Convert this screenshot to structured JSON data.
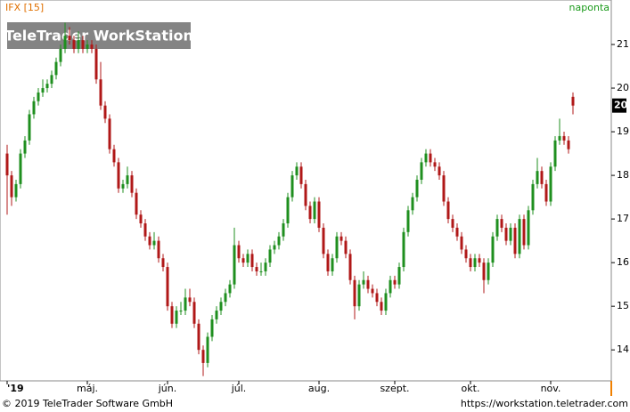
{
  "chart_data": {
    "type": "candlestick",
    "title": "IFX [15]",
    "interval": "naponta",
    "watermark": "TeleTrader WorkStation",
    "footer_left": "© 2019 TeleTrader Software GmbH",
    "footer_right": "https://workstation.teletrader.com",
    "up_color": "#1f8f1f",
    "down_color": "#b01818",
    "ylim": [
      13.29,
      22.02
    ],
    "yticks": [
      14,
      15,
      16,
      17,
      18,
      19,
      20,
      21
    ],
    "last_price": {
      "value": 19.6,
      "label": "20"
    },
    "categories": [
      "'19",
      null,
      null,
      null,
      null,
      null,
      null,
      null,
      null,
      null,
      null,
      null,
      null,
      null,
      null,
      null,
      null,
      null,
      "máj.",
      null,
      null,
      null,
      null,
      null,
      null,
      null,
      null,
      null,
      null,
      null,
      null,
      null,
      null,
      null,
      null,
      null,
      "jún.",
      null,
      null,
      null,
      null,
      null,
      null,
      null,
      null,
      null,
      null,
      null,
      null,
      null,
      null,
      null,
      "júl.",
      null,
      null,
      null,
      null,
      null,
      null,
      null,
      null,
      null,
      null,
      null,
      null,
      null,
      null,
      null,
      null,
      null,
      "aug.",
      null,
      null,
      null,
      null,
      null,
      null,
      null,
      null,
      null,
      null,
      null,
      null,
      null,
      null,
      null,
      null,
      "szept.",
      null,
      null,
      null,
      null,
      null,
      null,
      null,
      null,
      null,
      null,
      null,
      null,
      null,
      null,
      null,
      null,
      "okt.",
      null,
      null,
      null,
      null,
      null,
      null,
      null,
      null,
      null,
      null,
      null,
      null,
      null,
      null,
      null,
      null,
      null,
      "nov.",
      null,
      null,
      null,
      null,
      null
    ],
    "ohlc": [
      [
        18.5,
        18.7,
        17.1,
        18.0
      ],
      [
        18.0,
        18.1,
        17.3,
        17.5
      ],
      [
        17.5,
        17.9,
        17.4,
        17.8
      ],
      [
        17.8,
        18.6,
        17.7,
        18.5
      ],
      [
        18.5,
        18.9,
        18.4,
        18.8
      ],
      [
        18.8,
        19.5,
        18.7,
        19.4
      ],
      [
        19.4,
        19.8,
        19.3,
        19.7
      ],
      [
        19.7,
        20.0,
        19.6,
        19.9
      ],
      [
        19.9,
        20.2,
        19.8,
        20.0
      ],
      [
        20.0,
        20.2,
        19.9,
        20.1
      ],
      [
        20.1,
        20.4,
        20.0,
        20.3
      ],
      [
        20.3,
        20.7,
        20.2,
        20.6
      ],
      [
        20.6,
        21.0,
        20.5,
        20.9
      ],
      [
        20.9,
        21.5,
        20.8,
        21.2
      ],
      [
        21.2,
        21.4,
        21.0,
        21.1
      ],
      [
        21.1,
        21.2,
        20.8,
        20.9
      ],
      [
        20.9,
        21.3,
        20.8,
        21.1
      ],
      [
        21.1,
        21.2,
        20.8,
        20.9
      ],
      [
        20.9,
        21.1,
        20.8,
        21.0
      ],
      [
        21.0,
        21.1,
        20.8,
        20.9
      ],
      [
        20.9,
        21.0,
        20.1,
        20.2
      ],
      [
        20.2,
        20.6,
        19.5,
        19.6
      ],
      [
        19.6,
        19.7,
        19.2,
        19.3
      ],
      [
        19.3,
        19.4,
        18.5,
        18.6
      ],
      [
        18.6,
        18.7,
        18.2,
        18.3
      ],
      [
        18.3,
        18.4,
        17.6,
        17.7
      ],
      [
        17.7,
        17.9,
        17.6,
        17.8
      ],
      [
        17.8,
        18.2,
        17.7,
        18.0
      ],
      [
        18.0,
        18.1,
        17.5,
        17.6
      ],
      [
        17.6,
        17.7,
        17.0,
        17.1
      ],
      [
        17.1,
        17.2,
        16.8,
        16.9
      ],
      [
        16.9,
        17.0,
        16.5,
        16.6
      ],
      [
        16.6,
        16.7,
        16.3,
        16.4
      ],
      [
        16.4,
        16.7,
        16.3,
        16.5
      ],
      [
        16.5,
        16.6,
        16.0,
        16.1
      ],
      [
        16.1,
        16.2,
        15.8,
        15.9
      ],
      [
        15.9,
        16.0,
        14.9,
        15.0
      ],
      [
        15.0,
        15.1,
        14.5,
        14.6
      ],
      [
        14.6,
        15.0,
        14.5,
        14.9
      ],
      [
        14.9,
        15.1,
        14.8,
        14.9
      ],
      [
        14.9,
        15.4,
        14.8,
        15.2
      ],
      [
        15.2,
        15.4,
        15.0,
        15.1
      ],
      [
        15.1,
        15.2,
        14.5,
        14.6
      ],
      [
        14.6,
        14.7,
        13.9,
        14.0
      ],
      [
        14.0,
        14.1,
        13.4,
        13.7
      ],
      [
        13.7,
        14.4,
        13.6,
        14.3
      ],
      [
        14.3,
        14.8,
        14.2,
        14.7
      ],
      [
        14.7,
        15.0,
        14.6,
        14.9
      ],
      [
        14.9,
        15.2,
        14.8,
        15.1
      ],
      [
        15.1,
        15.4,
        15.0,
        15.3
      ],
      [
        15.3,
        15.6,
        15.2,
        15.5
      ],
      [
        15.5,
        16.8,
        15.4,
        16.4
      ],
      [
        16.4,
        16.5,
        16.0,
        16.1
      ],
      [
        16.1,
        16.2,
        15.9,
        16.0
      ],
      [
        16.0,
        16.3,
        15.9,
        16.2
      ],
      [
        16.2,
        16.3,
        15.8,
        15.9
      ],
      [
        15.9,
        16.0,
        15.7,
        15.8
      ],
      [
        15.8,
        16.0,
        15.7,
        15.8
      ],
      [
        15.8,
        16.1,
        15.7,
        16.0
      ],
      [
        16.0,
        16.4,
        15.9,
        16.3
      ],
      [
        16.3,
        16.5,
        16.2,
        16.4
      ],
      [
        16.4,
        16.7,
        16.3,
        16.6
      ],
      [
        16.6,
        17.0,
        16.5,
        16.9
      ],
      [
        16.9,
        17.6,
        16.8,
        17.5
      ],
      [
        17.5,
        18.1,
        17.4,
        18.0
      ],
      [
        18.0,
        18.3,
        17.9,
        18.2
      ],
      [
        18.2,
        18.3,
        17.7,
        17.8
      ],
      [
        17.8,
        17.9,
        17.2,
        17.3
      ],
      [
        17.3,
        17.4,
        16.9,
        17.0
      ],
      [
        17.0,
        17.5,
        16.9,
        17.4
      ],
      [
        17.4,
        17.5,
        16.7,
        16.8
      ],
      [
        16.8,
        16.9,
        16.1,
        16.2
      ],
      [
        16.2,
        16.3,
        15.7,
        15.8
      ],
      [
        15.8,
        16.2,
        15.7,
        16.1
      ],
      [
        16.1,
        16.7,
        16.0,
        16.6
      ],
      [
        16.6,
        16.7,
        16.4,
        16.5
      ],
      [
        16.5,
        16.6,
        16.1,
        16.2
      ],
      [
        16.2,
        16.3,
        15.5,
        15.6
      ],
      [
        15.6,
        15.7,
        14.7,
        15.0
      ],
      [
        15.0,
        15.6,
        14.9,
        15.5
      ],
      [
        15.5,
        15.8,
        15.4,
        15.6
      ],
      [
        15.6,
        15.7,
        15.3,
        15.4
      ],
      [
        15.4,
        15.5,
        15.2,
        15.3
      ],
      [
        15.3,
        15.4,
        15.0,
        15.1
      ],
      [
        15.1,
        15.2,
        14.8,
        14.9
      ],
      [
        14.9,
        15.4,
        14.8,
        15.3
      ],
      [
        15.3,
        15.7,
        15.2,
        15.6
      ],
      [
        15.6,
        15.7,
        15.4,
        15.5
      ],
      [
        15.5,
        16.0,
        15.4,
        15.9
      ],
      [
        15.9,
        16.8,
        15.8,
        16.7
      ],
      [
        16.7,
        17.3,
        16.6,
        17.2
      ],
      [
        17.2,
        17.6,
        17.1,
        17.5
      ],
      [
        17.5,
        18.0,
        17.4,
        17.9
      ],
      [
        17.9,
        18.4,
        17.8,
        18.3
      ],
      [
        18.3,
        18.6,
        18.2,
        18.5
      ],
      [
        18.5,
        18.6,
        18.2,
        18.3
      ],
      [
        18.3,
        18.4,
        18.1,
        18.2
      ],
      [
        18.2,
        18.3,
        17.9,
        18.0
      ],
      [
        18.0,
        18.1,
        17.3,
        17.4
      ],
      [
        17.4,
        17.5,
        16.9,
        17.0
      ],
      [
        17.0,
        17.1,
        16.7,
        16.8
      ],
      [
        16.8,
        16.9,
        16.5,
        16.6
      ],
      [
        16.6,
        16.7,
        16.2,
        16.3
      ],
      [
        16.3,
        16.4,
        16.0,
        16.1
      ],
      [
        16.1,
        16.2,
        15.8,
        15.9
      ],
      [
        15.9,
        16.2,
        15.8,
        16.1
      ],
      [
        16.1,
        16.2,
        15.9,
        16.0
      ],
      [
        16.0,
        16.1,
        15.3,
        15.6
      ],
      [
        15.6,
        16.1,
        15.5,
        16.0
      ],
      [
        16.0,
        16.7,
        15.9,
        16.6
      ],
      [
        16.6,
        17.1,
        16.5,
        17.0
      ],
      [
        17.0,
        17.1,
        16.7,
        16.8
      ],
      [
        16.8,
        16.9,
        16.4,
        16.5
      ],
      [
        16.5,
        16.9,
        16.4,
        16.8
      ],
      [
        16.8,
        16.9,
        16.1,
        16.2
      ],
      [
        16.2,
        17.1,
        16.1,
        17.0
      ],
      [
        17.0,
        17.1,
        16.3,
        16.4
      ],
      [
        16.4,
        17.3,
        16.3,
        17.2
      ],
      [
        17.2,
        17.9,
        17.1,
        17.8
      ],
      [
        17.8,
        18.4,
        17.7,
        18.1
      ],
      [
        18.1,
        18.2,
        17.7,
        17.8
      ],
      [
        17.8,
        17.9,
        17.3,
        17.4
      ],
      [
        17.4,
        18.3,
        17.3,
        18.2
      ],
      [
        18.2,
        18.9,
        18.1,
        18.8
      ],
      [
        18.8,
        19.3,
        18.7,
        18.9
      ],
      [
        18.9,
        19.0,
        18.7,
        18.8
      ],
      [
        18.8,
        18.9,
        18.5,
        18.6
      ],
      [
        19.8,
        19.9,
        19.4,
        19.6
      ]
    ]
  }
}
